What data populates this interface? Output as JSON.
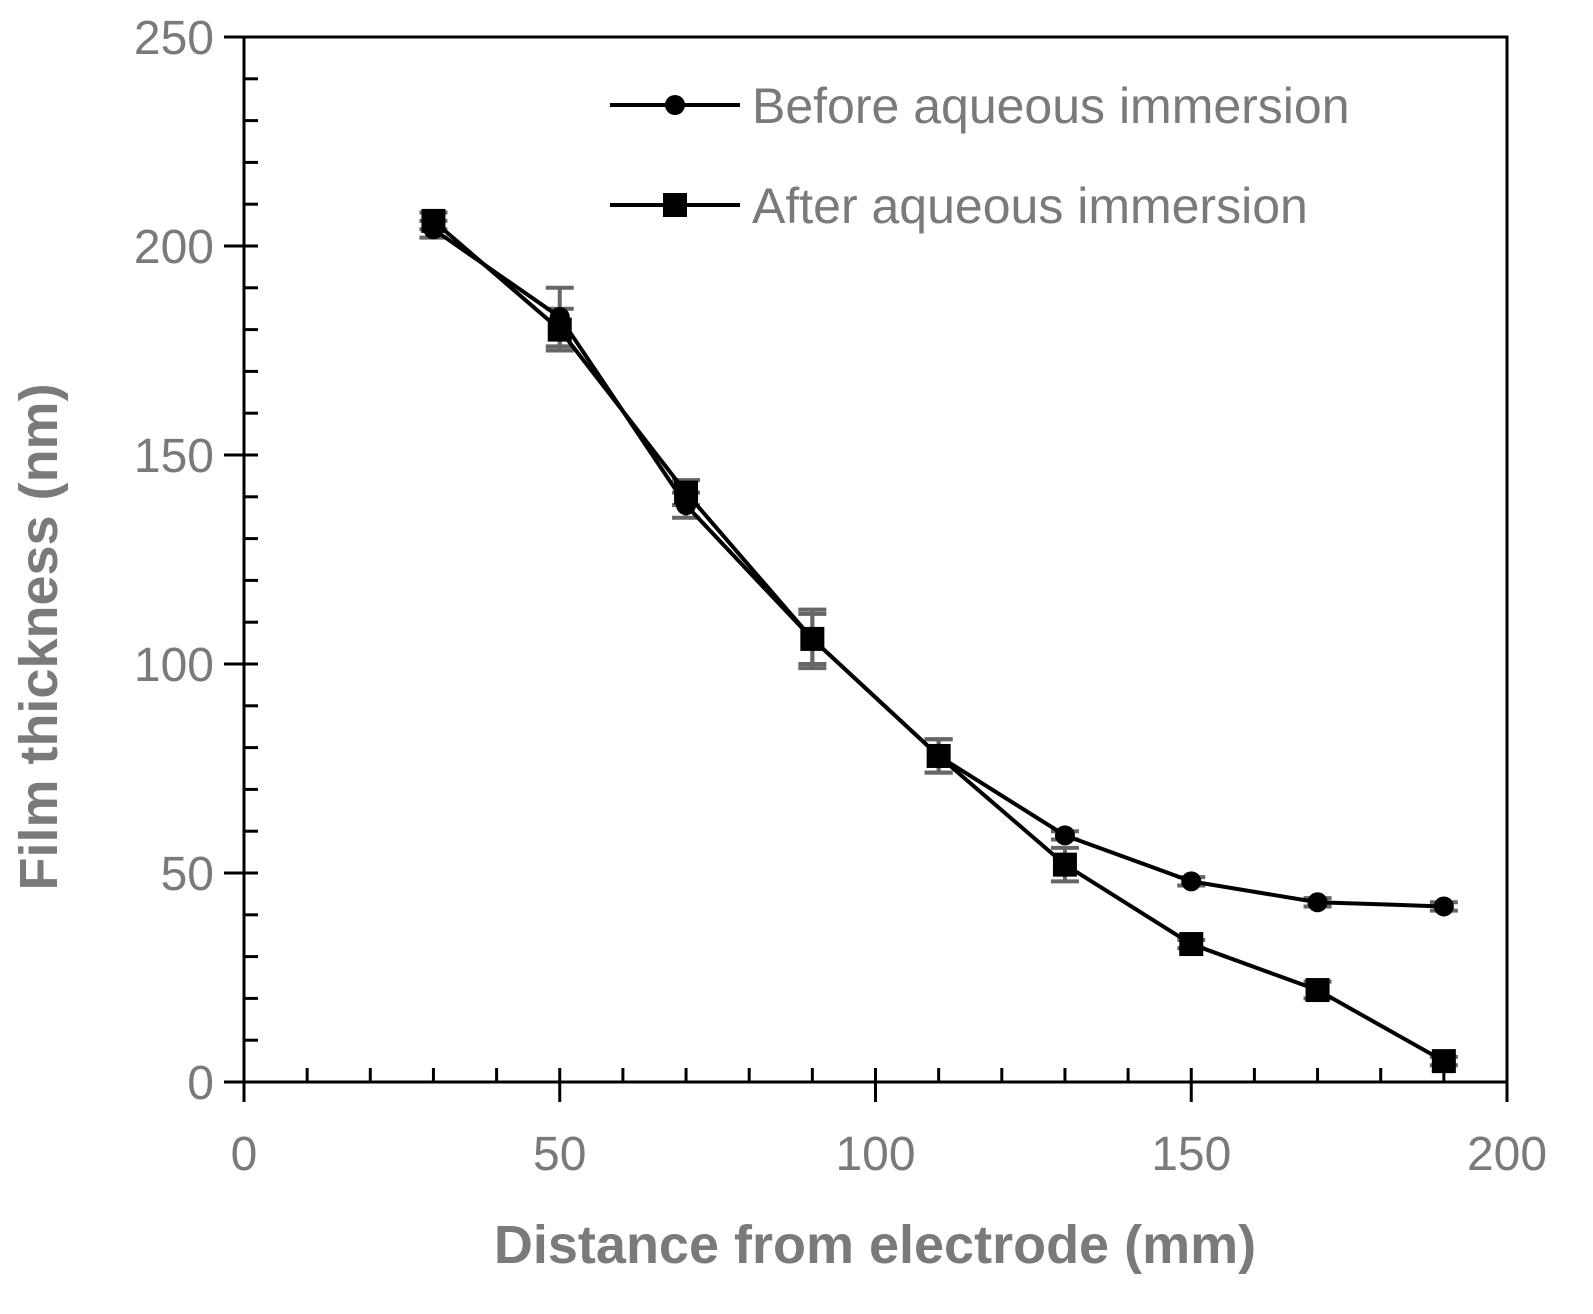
{
  "chart_data": {
    "type": "line",
    "xlabel": "Distance from electrode (mm)",
    "ylabel": "Film thickness (nm)",
    "xlim": [
      0,
      200
    ],
    "ylim": [
      0,
      250
    ],
    "x_ticks": [
      0,
      50,
      100,
      150,
      200
    ],
    "y_ticks": [
      0,
      50,
      100,
      150,
      200,
      250
    ],
    "grid": false,
    "legend_position": "top-right",
    "x": [
      30,
      50,
      70,
      90,
      110,
      130,
      150,
      170,
      190
    ],
    "series": [
      {
        "name": "Before aqueous immersion",
        "marker": "circle",
        "color": "#000000",
        "values": [
          204,
          183,
          138,
          106,
          78,
          59,
          48,
          43,
          42
        ],
        "error": [
          2,
          7,
          3,
          7,
          4,
          1,
          1,
          1,
          1
        ]
      },
      {
        "name": "After aqueous immersion",
        "marker": "square",
        "color": "#000000",
        "values": [
          206,
          180,
          141,
          106,
          78,
          52,
          33,
          22,
          5
        ],
        "error": [
          2,
          5,
          3,
          6,
          4,
          4,
          1,
          2,
          1
        ]
      }
    ],
    "errorbar_color": "#666666"
  }
}
